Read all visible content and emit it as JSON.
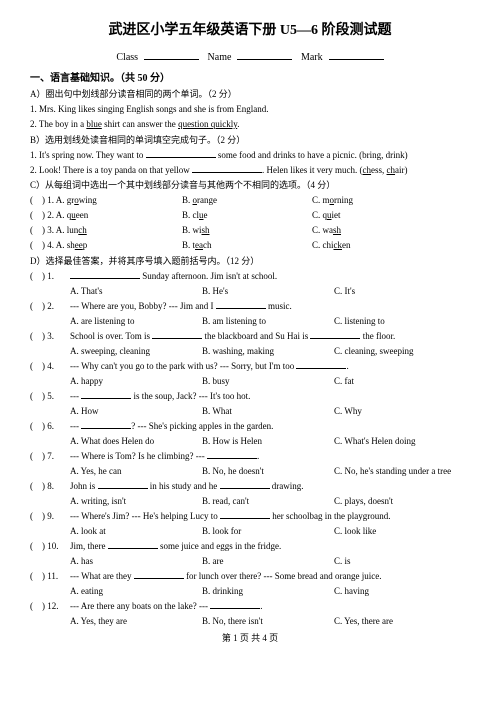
{
  "title": "武进区小学五年级英语下册 U5—6 阶段测试题",
  "hdr": {
    "class": "Class",
    "name": "Name",
    "mark": "Mark"
  },
  "s1": {
    "h": "一、语言基础知识。（共 50 分）",
    "a": "A）圈出句中划线部分读音相同的两个单词。（2 分）",
    "a1": "1. Mrs. King likes singing English songs and she is from England.",
    "a2": "2. The boy in a ",
    "a2u": "blue",
    "a2b": " shirt can answer the ",
    "a2u2": "question quickly",
    "a2c": ".",
    "b": "B）选用划线处读音相同的单词填空完成句子。（2 分）",
    "b1": "1. It's spring now. They want to ",
    "b1e": " some food and drinks to have a picnic. (bring, drink)",
    "b2": "2. Look! There is a toy panda on that yellow ",
    "b2e": ". Helen likes it very much. (",
    "b2u": "ch",
    "b2a": "ess, ",
    "b2u2": "ch",
    "b2b": "air)",
    "c": "C）从每组词中选出一个其中划线部分读音与其他两个不相同的选项。（4 分）",
    "cq": [
      {
        "n": ") 1. A. growing",
        "b": "B. orange",
        "c": "C. morning"
      },
      {
        "n": ") 2. A. queen",
        "b": "B. clue",
        "c": "C. quiet"
      },
      {
        "n": ") 3. A. lunch",
        "b": "B. wish",
        "c": "C. wash"
      },
      {
        "n": ") 4. A. sheep",
        "b": "B. teach",
        "c": "C. chicken"
      }
    ],
    "cu": {
      "1a": "o",
      "1b": "o",
      "1c": "o",
      "2a": "u",
      "2b": "u",
      "2c": "u",
      "3a": "ch",
      "3b": "sh",
      "3c": "sh",
      "4a": "ee",
      "4b": "ea",
      "4c": "ck"
    },
    "d": "D）选择最佳答案，并将其序号填入题前括号内。（12 分）",
    "dq": [
      {
        "n": "1.",
        "q": " Sunday afternoon. Jim isn't at school.",
        "a": "A. That's",
        "b": "B. He's",
        "c": "C. It's",
        "pre": ""
      },
      {
        "n": "2.",
        "q": "--- Where are you, Bobby?   --- Jim and I ",
        "q2": " music.",
        "a": "A. are listening to",
        "b": "B. am listening to",
        "c": "C. listening to"
      },
      {
        "n": "3.",
        "q": "School is over. Tom is ",
        "q2": " the blackboard and Su Hai is ",
        "q3": " the floor.",
        "a": "A. sweeping, cleaning",
        "b": "B. washing, making",
        "c": "C. cleaning, sweeping"
      },
      {
        "n": "4.",
        "q": "--- Why can't you go to the park with us?    --- Sorry, but I'm too ",
        "q2": ".",
        "a": "A. happy",
        "b": "B. busy",
        "c": "C. fat"
      },
      {
        "n": "5.",
        "q": "--- ",
        "q2": " is the soup, Jack?    --- It's too hot.",
        "a": "A. How",
        "b": "B. What",
        "c": "C. Why"
      },
      {
        "n": "6.",
        "q": "--- ",
        "q2": "?    --- She's picking apples in the garden.",
        "a": "A. What does Helen do",
        "b": "B. How is Helen",
        "c": "C. What's Helen doing"
      },
      {
        "n": "7.",
        "q": "--- Where is Tom? Is he climbing?   --- ",
        "q2": ".",
        "a": "A. Yes, he can",
        "b": "B. No, he doesn't",
        "c": "C. No, he's standing under a tree"
      },
      {
        "n": "8.",
        "q": "John is ",
        "q2": " in his study and he ",
        "q3": " drawing.",
        "a": "A. writing, isn't",
        "b": "B. read, can't",
        "c": "C. plays, doesn't"
      },
      {
        "n": "9.",
        "q": "--- Where's Jim?  --- He's helping Lucy to ",
        "q2": " her schoolbag in the playground.",
        "a": "A. look at",
        "b": "B. look for",
        "c": "C. look like"
      },
      {
        "n": "10.",
        "q": "Jim, there ",
        "q2": " some juice and eggs in the fridge.",
        "a": "A. has",
        "b": "B. are",
        "c": "C. is"
      },
      {
        "n": "11.",
        "q": "--- What are they ",
        "q2": " for lunch over there?   --- Some bread and orange juice.",
        "a": "A. eating",
        "b": "B. drinking",
        "c": "C. having"
      },
      {
        "n": "12.",
        "q": "--- Are there any boats on the lake?  --- ",
        "q2": ".",
        "a": "A. Yes, they are",
        "b": "B. No, there isn't",
        "c": "C. Yes, there are"
      }
    ]
  },
  "ftr": "第 1 页 共 4 页"
}
